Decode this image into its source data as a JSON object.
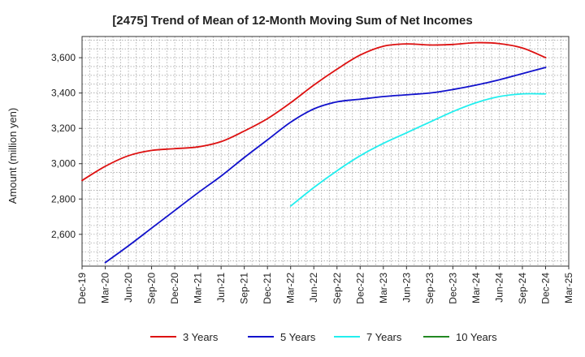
{
  "chart_data": {
    "type": "line",
    "title": "[2475]  Trend of Mean of 12-Month Moving Sum of Net Incomes",
    "xlabel": "",
    "ylabel": "Amount (million yen)",
    "ylim": [
      2420,
      3720
    ],
    "yticks": [
      2600,
      2800,
      3000,
      3200,
      3400,
      3600
    ],
    "ytick_labels": [
      "2,600",
      "2,800",
      "3,000",
      "3,200",
      "3,400",
      "3,600"
    ],
    "x_categories": [
      "Dec-19",
      "Mar-20",
      "Jun-20",
      "Sep-20",
      "Dec-20",
      "Mar-21",
      "Jun-21",
      "Sep-21",
      "Dec-21",
      "Mar-22",
      "Jun-22",
      "Sep-22",
      "Dec-22",
      "Mar-23",
      "Jun-23",
      "Sep-23",
      "Dec-23",
      "Mar-24",
      "Jun-24",
      "Sep-24",
      "Dec-24",
      "Mar-25"
    ],
    "grid": true,
    "legend_position": "bottom",
    "series": [
      {
        "name": "3 Years",
        "color": "#dd1111",
        "x": [
          "Dec-19",
          "Mar-20",
          "Jun-20",
          "Sep-20",
          "Dec-20",
          "Mar-21",
          "Jun-21",
          "Sep-21",
          "Dec-21",
          "Mar-22",
          "Jun-22",
          "Sep-22",
          "Dec-22",
          "Mar-23",
          "Jun-23",
          "Sep-23",
          "Dec-23",
          "Mar-24",
          "Jun-24",
          "Sep-24",
          "Dec-24"
        ],
        "values": [
          2905,
          2985,
          3045,
          3075,
          3085,
          3095,
          3125,
          3185,
          3255,
          3345,
          3445,
          3535,
          3615,
          3665,
          3678,
          3672,
          3675,
          3685,
          3680,
          3655,
          3600
        ]
      },
      {
        "name": "5 Years",
        "color": "#1111cc",
        "x": [
          "Mar-20",
          "Jun-20",
          "Sep-20",
          "Dec-20",
          "Mar-21",
          "Jun-21",
          "Sep-21",
          "Dec-21",
          "Mar-22",
          "Jun-22",
          "Sep-22",
          "Dec-22",
          "Mar-23",
          "Jun-23",
          "Sep-23",
          "Dec-23",
          "Mar-24",
          "Jun-24",
          "Sep-24",
          "Dec-24"
        ],
        "values": [
          2440,
          2535,
          2635,
          2735,
          2835,
          2930,
          3035,
          3135,
          3235,
          3310,
          3350,
          3365,
          3380,
          3390,
          3400,
          3420,
          3445,
          3475,
          3510,
          3545
        ]
      },
      {
        "name": "7 Years",
        "color": "#22eeee",
        "x": [
          "Mar-22",
          "Jun-22",
          "Sep-22",
          "Dec-22",
          "Mar-23",
          "Jun-23",
          "Sep-23",
          "Dec-23",
          "Mar-24",
          "Jun-24",
          "Sep-24",
          "Dec-24"
        ],
        "values": [
          2760,
          2865,
          2960,
          3045,
          3115,
          3175,
          3235,
          3295,
          3345,
          3380,
          3395,
          3395
        ]
      },
      {
        "name": "10 Years",
        "color": "#228822",
        "x": [],
        "values": []
      }
    ]
  }
}
